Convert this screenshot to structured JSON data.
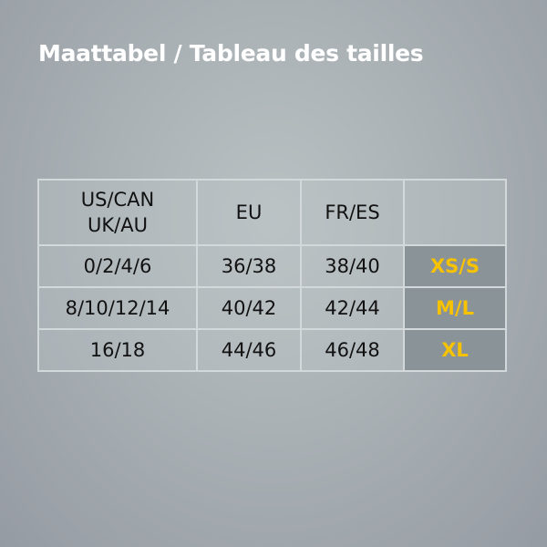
{
  "title": "Maattabel / Tableau des tailles",
  "colors": {
    "size_label": "#f7c200",
    "size_cell": "#8a9398"
  },
  "table": {
    "headers": [
      "US/CAN\nUK/AU",
      "EU",
      "FR/ES",
      ""
    ],
    "header_lines": {
      "us_line1": "US/CAN",
      "us_line2": "UK/AU"
    },
    "rows": [
      {
        "us": "0/2/4/6",
        "eu": "36/38",
        "fr": "38/40",
        "size": "XS/S"
      },
      {
        "us": "8/10/12/14",
        "eu": "40/42",
        "fr": "42/44",
        "size": "M/L"
      },
      {
        "us": "16/18",
        "eu": "44/46",
        "fr": "46/48",
        "size": "XL"
      }
    ]
  }
}
